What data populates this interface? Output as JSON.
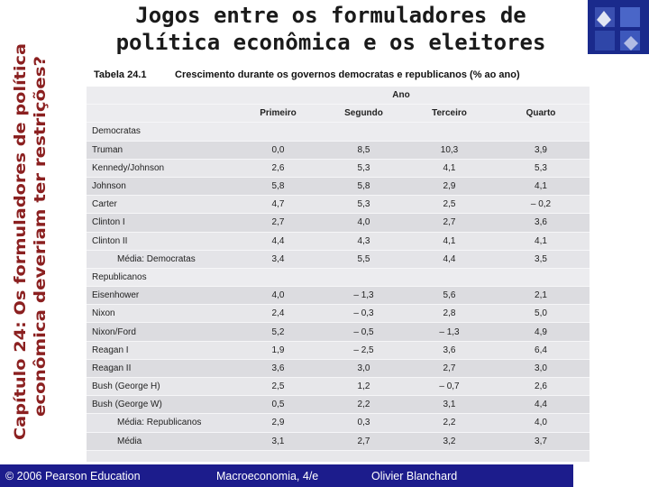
{
  "side_title": {
    "line1": "Capítulo 24: Os formuladores de política",
    "line2": "econômica deveriam ter restrições?"
  },
  "main_title": {
    "line1": "Jogos entre os formuladores de",
    "line2": "política econômica e os eleitores"
  },
  "table": {
    "number": "Tabela 24.1",
    "caption": "Crescimento durante os governos democratas e republicanos (% ao ano)",
    "group_header": "Ano",
    "columns": [
      "Primeiro",
      "Segundo",
      "Terceiro",
      "Quarto"
    ],
    "sections": [
      {
        "name": "Democratas",
        "rows": [
          {
            "label": "Truman",
            "values": [
              "0,0",
              "8,5",
              "10,3",
              "3,9"
            ]
          },
          {
            "label": "Kennedy/Johnson",
            "values": [
              "2,6",
              "5,3",
              "4,1",
              "5,3"
            ]
          },
          {
            "label": "Johnson",
            "values": [
              "5,8",
              "5,8",
              "2,9",
              "4,1"
            ]
          },
          {
            "label": "Carter",
            "values": [
              "4,7",
              "5,3",
              "2,5",
              "– 0,2"
            ]
          },
          {
            "label": "Clinton I",
            "values": [
              "2,7",
              "4,0",
              "2,7",
              "3,6"
            ]
          },
          {
            "label": "Clinton II",
            "values": [
              "4,4",
              "4,3",
              "4,1",
              "4,1"
            ]
          }
        ],
        "average": {
          "label": "Média: Democratas",
          "values": [
            "3,4",
            "5,5",
            "4,4",
            "3,5"
          ]
        }
      },
      {
        "name": "Republicanos",
        "rows": [
          {
            "label": "Eisenhower",
            "values": [
              "4,0",
              "– 1,3",
              "5,6",
              "2,1"
            ]
          },
          {
            "label": "Nixon",
            "values": [
              "2,4",
              "– 0,3",
              "2,8",
              "5,0"
            ]
          },
          {
            "label": "Nixon/Ford",
            "values": [
              "5,2",
              "– 0,5",
              "– 1,3",
              "4,9"
            ]
          },
          {
            "label": "Reagan I",
            "values": [
              "1,9",
              "– 2,5",
              "3,6",
              "6,4"
            ]
          },
          {
            "label": "Reagan II",
            "values": [
              "3,6",
              "3,0",
              "2,7",
              "3,0"
            ]
          },
          {
            "label": "Bush (George H)",
            "values": [
              "2,5",
              "1,2",
              "– 0,7",
              "2,6"
            ]
          },
          {
            "label": "Bush (George W)",
            "values": [
              "0,5",
              "2,2",
              "3,1",
              "4,4"
            ]
          }
        ],
        "average": {
          "label": "Média: Republicanos",
          "values": [
            "2,9",
            "0,3",
            "2,2",
            "4,0"
          ]
        }
      }
    ],
    "overall_average": {
      "label": "Média",
      "values": [
        "3,1",
        "2,7",
        "3,2",
        "3,7"
      ]
    }
  },
  "footer": {
    "copyright": "© 2006 Pearson Education",
    "book": "Macroeconomia, 4/e",
    "author": "Olivier Blanchard"
  },
  "colors": {
    "side_title": "#8b2020",
    "footer_bg": "#1c1c8c",
    "logo_bg": "#1a2a8c"
  },
  "icons": {
    "logo": "publisher-logo-icon"
  }
}
